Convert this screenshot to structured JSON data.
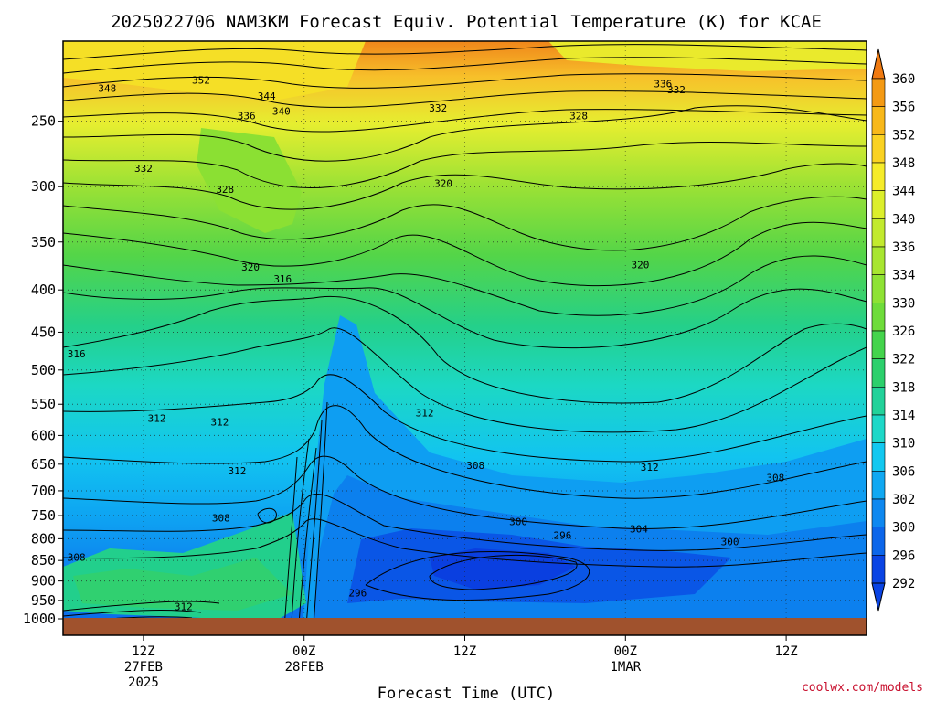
{
  "chart_data": {
    "type": "heatmap",
    "title": "2025022706 NAM3KM Forecast Equiv. Potential Temperature (K) for KCAE",
    "xlabel": "Forecast Time (UTC)",
    "ylabel": "",
    "credit": "coolwx.com/models",
    "y_ticks": [
      250,
      300,
      350,
      400,
      450,
      500,
      550,
      600,
      650,
      700,
      750,
      800,
      850,
      900,
      950,
      1000
    ],
    "y_range": [
      1000,
      200
    ],
    "x_ticks": [
      {
        "hour": 6,
        "lines": [
          "12Z",
          "27FEB",
          "2025"
        ]
      },
      {
        "hour": 18,
        "lines": [
          "00Z",
          "28FEB"
        ]
      },
      {
        "hour": 30,
        "lines": [
          "12Z"
        ]
      },
      {
        "hour": 42,
        "lines": [
          "00Z",
          "1MAR"
        ]
      },
      {
        "hour": 54,
        "lines": [
          "12Z"
        ]
      }
    ],
    "x_range": [
      0,
      60
    ],
    "grid": true,
    "colorbar": {
      "labels": [
        "360",
        "356",
        "352",
        "348",
        "344",
        "340",
        "336",
        "334",
        "330",
        "326",
        "322",
        "318",
        "314",
        "310",
        "306",
        "302",
        "300",
        "296",
        "292"
      ],
      "colors": [
        "#f07a10",
        "#f49a14",
        "#f8b81a",
        "#fad222",
        "#f6ec2a",
        "#dcef2c",
        "#c2ea2e",
        "#a8e630",
        "#8ee234",
        "#6edc3a",
        "#44d44c",
        "#2cd06c",
        "#22d29a",
        "#1ed8c8",
        "#12c8f0",
        "#10a8f2",
        "#0e88f0",
        "#0c66ea",
        "#0a44e4"
      ],
      "placement": "right"
    },
    "contour_labels": [
      {
        "t": 3.3,
        "p": 228,
        "v": "348"
      },
      {
        "t": 10.3,
        "p": 223,
        "v": "352"
      },
      {
        "t": 15.2,
        "p": 233,
        "v": "344"
      },
      {
        "t": 16.3,
        "p": 243,
        "v": "340"
      },
      {
        "t": 13.7,
        "p": 246,
        "v": "336"
      },
      {
        "t": 28.0,
        "p": 241,
        "v": "332"
      },
      {
        "t": 38.5,
        "p": 246,
        "v": "328"
      },
      {
        "t": 44.8,
        "p": 225,
        "v": "336"
      },
      {
        "t": 45.8,
        "p": 229,
        "v": "332"
      },
      {
        "t": 6.0,
        "p": 285,
        "v": "332"
      },
      {
        "t": 12.1,
        "p": 302,
        "v": "328"
      },
      {
        "t": 28.4,
        "p": 297,
        "v": "320"
      },
      {
        "t": 14.0,
        "p": 375,
        "v": "320"
      },
      {
        "t": 16.4,
        "p": 388,
        "v": "316"
      },
      {
        "t": 43.1,
        "p": 373,
        "v": "320"
      },
      {
        "t": 1.0,
        "p": 478,
        "v": "316"
      },
      {
        "t": 7.0,
        "p": 572,
        "v": "312"
      },
      {
        "t": 11.7,
        "p": 578,
        "v": "312"
      },
      {
        "t": 27.0,
        "p": 563,
        "v": "312"
      },
      {
        "t": 13.0,
        "p": 662,
        "v": "312"
      },
      {
        "t": 30.8,
        "p": 652,
        "v": "308"
      },
      {
        "t": 43.8,
        "p": 655,
        "v": "312"
      },
      {
        "t": 53.2,
        "p": 675,
        "v": "308"
      },
      {
        "t": 11.8,
        "p": 755,
        "v": "308"
      },
      {
        "t": 34.0,
        "p": 762,
        "v": "300"
      },
      {
        "t": 37.3,
        "p": 792,
        "v": "296"
      },
      {
        "t": 43.0,
        "p": 778,
        "v": "304"
      },
      {
        "t": 49.8,
        "p": 806,
        "v": "300"
      },
      {
        "t": 1.0,
        "p": 842,
        "v": "308"
      },
      {
        "t": 22.0,
        "p": 930,
        "v": "296"
      },
      {
        "t": 9.0,
        "p": 966,
        "v": "312"
      }
    ]
  }
}
